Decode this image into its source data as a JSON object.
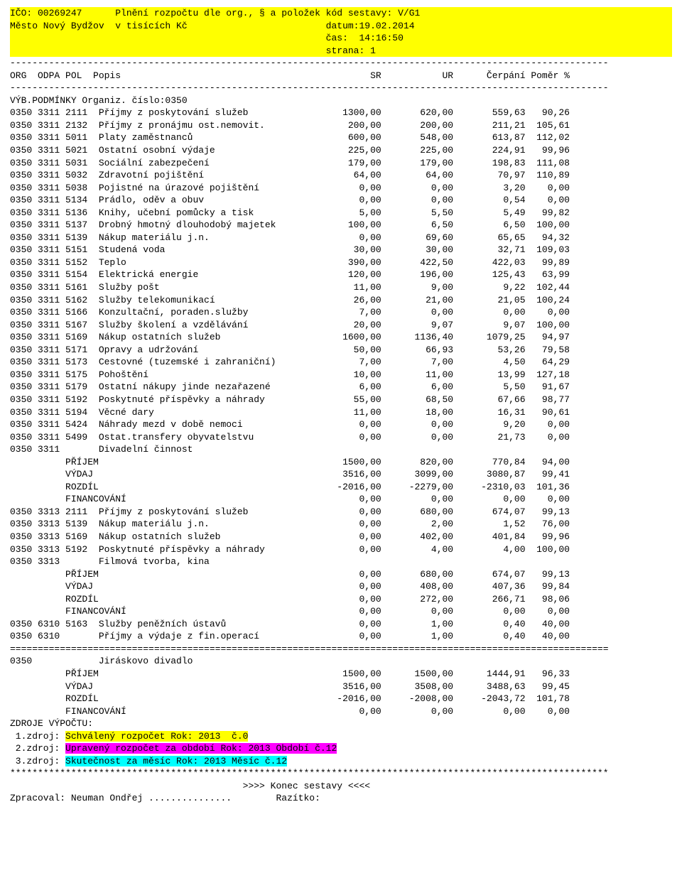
{
  "header": {
    "ico_label": "IČO: 00269247",
    "title": "Plnění rozpočtu dle org., § a položek",
    "kod": "kód sestavy: V/G1",
    "mesto": "Město Nový Bydžov  v tisících Kč",
    "datum": "datum:19.02.2014",
    "cas": "čas:  14:16:50",
    "strana": "strana: 1"
  },
  "colhdr": {
    "left": "ORG  ODPA POL  Popis",
    "sr": "SR",
    "ur": "UR",
    "cerp": "Čerpání",
    "pomer": "Poměr %"
  },
  "vyb": "VÝB.PODMÍNKY Organiz. číslo:0350",
  "rows": [
    {
      "key": "0350 3311 2111  Příjmy z poskytování služeb",
      "sr": "1300,00",
      "ur": "620,00",
      "c": "559,63",
      "p": "90,26"
    },
    {
      "key": "0350 3311 2132  Příjmy z pronájmu ost.nemovit.",
      "sr": "200,00",
      "ur": "200,00",
      "c": "211,21",
      "p": "105,61"
    },
    {
      "key": "0350 3311 5011  Platy zaměstnanců",
      "sr": "600,00",
      "ur": "548,00",
      "c": "613,87",
      "p": "112,02"
    },
    {
      "key": "0350 3311 5021  Ostatní osobní výdaje",
      "sr": "225,00",
      "ur": "225,00",
      "c": "224,91",
      "p": "99,96"
    },
    {
      "key": "0350 3311 5031  Sociální zabezpečení",
      "sr": "179,00",
      "ur": "179,00",
      "c": "198,83",
      "p": "111,08"
    },
    {
      "key": "0350 3311 5032  Zdravotní pojištění",
      "sr": "64,00",
      "ur": "64,00",
      "c": "70,97",
      "p": "110,89"
    },
    {
      "key": "0350 3311 5038  Pojistné na úrazové pojištění",
      "sr": "0,00",
      "ur": "0,00",
      "c": "3,20",
      "p": "0,00"
    },
    {
      "key": "0350 3311 5134  Prádlo, oděv a obuv",
      "sr": "0,00",
      "ur": "0,00",
      "c": "0,54",
      "p": "0,00"
    },
    {
      "key": "0350 3311 5136  Knihy, učební pomůcky a tisk",
      "sr": "5,00",
      "ur": "5,50",
      "c": "5,49",
      "p": "99,82"
    },
    {
      "key": "0350 3311 5137  Drobný hmotný dlouhodobý majetek",
      "sr": "100,00",
      "ur": "6,50",
      "c": "6,50",
      "p": "100,00"
    },
    {
      "key": "0350 3311 5139  Nákup materiálu j.n.",
      "sr": "0,00",
      "ur": "69,60",
      "c": "65,65",
      "p": "94,32"
    },
    {
      "key": "0350 3311 5151  Studená voda",
      "sr": "30,00",
      "ur": "30,00",
      "c": "32,71",
      "p": "109,03"
    },
    {
      "key": "0350 3311 5152  Teplo",
      "sr": "390,00",
      "ur": "422,50",
      "c": "422,03",
      "p": "99,89"
    },
    {
      "key": "0350 3311 5154  Elektrická energie",
      "sr": "120,00",
      "ur": "196,00",
      "c": "125,43",
      "p": "63,99"
    },
    {
      "key": "0350 3311 5161  Služby pošt",
      "sr": "11,00",
      "ur": "9,00",
      "c": "9,22",
      "p": "102,44"
    },
    {
      "key": "0350 3311 5162  Služby telekomunikací",
      "sr": "26,00",
      "ur": "21,00",
      "c": "21,05",
      "p": "100,24"
    },
    {
      "key": "0350 3311 5166  Konzultační, poraden.služby",
      "sr": "7,00",
      "ur": "0,00",
      "c": "0,00",
      "p": "0,00"
    },
    {
      "key": "0350 3311 5167  Služby školení a vzdělávání",
      "sr": "20,00",
      "ur": "9,07",
      "c": "9,07",
      "p": "100,00"
    },
    {
      "key": "0350 3311 5169  Nákup ostatních služeb",
      "sr": "1600,00",
      "ur": "1136,40",
      "c": "1079,25",
      "p": "94,97"
    },
    {
      "key": "0350 3311 5171  Opravy a udržování",
      "sr": "50,00",
      "ur": "66,93",
      "c": "53,26",
      "p": "79,58"
    },
    {
      "key": "0350 3311 5173  Cestovné (tuzemské i zahraniční)",
      "sr": "7,00",
      "ur": "7,00",
      "c": "4,50",
      "p": "64,29"
    },
    {
      "key": "0350 3311 5175  Pohoštění",
      "sr": "10,00",
      "ur": "11,00",
      "c": "13,99",
      "p": "127,18"
    },
    {
      "key": "0350 3311 5179  Ostatní nákupy jinde nezařazené",
      "sr": "6,00",
      "ur": "6,00",
      "c": "5,50",
      "p": "91,67"
    },
    {
      "key": "0350 3311 5192  Poskytnuté příspěvky a náhrady",
      "sr": "55,00",
      "ur": "68,50",
      "c": "67,66",
      "p": "98,77"
    },
    {
      "key": "0350 3311 5194  Věcné dary",
      "sr": "11,00",
      "ur": "18,00",
      "c": "16,31",
      "p": "90,61"
    },
    {
      "key": "0350 3311 5424  Náhrady mezd v době nemoci",
      "sr": "0,00",
      "ur": "0,00",
      "c": "9,20",
      "p": "0,00"
    },
    {
      "key": "0350 3311 5499  Ostat.transfery obyvatelstvu",
      "sr": "0,00",
      "ur": "0,00",
      "c": "21,73",
      "p": "0,00"
    },
    {
      "key": "0350 3311       Divadelní činnost"
    },
    {
      "key": "          PŘÍJEM",
      "sr": "1500,00",
      "ur": "820,00",
      "c": "770,84",
      "p": "94,00"
    },
    {
      "key": "          VÝDAJ",
      "sr": "3516,00",
      "ur": "3099,00",
      "c": "3080,87",
      "p": "99,41"
    },
    {
      "key": "          ROZDÍL",
      "sr": "-2016,00",
      "ur": "-2279,00",
      "c": "-2310,03",
      "p": "101,36"
    },
    {
      "key": "          FINANCOVÁNÍ",
      "sr": "0,00",
      "ur": "0,00",
      "c": "0,00",
      "p": "0,00"
    },
    {
      "key": "0350 3313 2111  Příjmy z poskytování služeb",
      "sr": "0,00",
      "ur": "680,00",
      "c": "674,07",
      "p": "99,13"
    },
    {
      "key": "0350 3313 5139  Nákup materiálu j.n.",
      "sr": "0,00",
      "ur": "2,00",
      "c": "1,52",
      "p": "76,00"
    },
    {
      "key": "0350 3313 5169  Nákup ostatních služeb",
      "sr": "0,00",
      "ur": "402,00",
      "c": "401,84",
      "p": "99,96"
    },
    {
      "key": "0350 3313 5192  Poskytnuté příspěvky a náhrady",
      "sr": "0,00",
      "ur": "4,00",
      "c": "4,00",
      "p": "100,00"
    },
    {
      "key": "0350 3313       Filmová tvorba, kina"
    },
    {
      "key": "          PŘÍJEM",
      "sr": "0,00",
      "ur": "680,00",
      "c": "674,07",
      "p": "99,13"
    },
    {
      "key": "          VÝDAJ",
      "sr": "0,00",
      "ur": "408,00",
      "c": "407,36",
      "p": "99,84"
    },
    {
      "key": "          ROZDÍL",
      "sr": "0,00",
      "ur": "272,00",
      "c": "266,71",
      "p": "98,06"
    },
    {
      "key": "          FINANCOVÁNÍ",
      "sr": "0,00",
      "ur": "0,00",
      "c": "0,00",
      "p": "0,00"
    },
    {
      "key": "0350 6310 5163  Služby peněžních ústavů",
      "sr": "0,00",
      "ur": "1,00",
      "c": "0,40",
      "p": "40,00"
    },
    {
      "key": "0350 6310       Příjmy a výdaje z fin.operací",
      "sr": "0,00",
      "ur": "1,00",
      "c": "0,40",
      "p": "40,00"
    }
  ],
  "summary": {
    "title": "0350            Jiráskovo divadlo",
    "rows": [
      {
        "key": "          PŘÍJEM",
        "sr": "1500,00",
        "ur": "1500,00",
        "c": "1444,91",
        "p": "96,33"
      },
      {
        "key": "          VÝDAJ",
        "sr": "3516,00",
        "ur": "3508,00",
        "c": "3488,63",
        "p": "99,45"
      },
      {
        "key": "          ROZDÍL",
        "sr": "-2016,00",
        "ur": "-2008,00",
        "c": "-2043,72",
        "p": "101,78"
      },
      {
        "key": "          FINANCOVÁNÍ",
        "sr": "0,00",
        "ur": "0,00",
        "c": "0,00",
        "p": "0,00"
      }
    ]
  },
  "zdroje": {
    "title": "ZDROJE VÝPOČTU:",
    "r1_p": " 1.zdroj: ",
    "r1_h": "Schválený rozpočet Rok: 2013  č.0",
    "r2_p": " 2.zdroj: ",
    "r2_h": "Upravený rozpočet za období Rok: 2013 Období č.12",
    "r3_p": " 3.zdroj: ",
    "r3_h": "Skutečnost za měsíc Rok: 2013 Měsíc č.12"
  },
  "end_marker": ">>>> Konec sestavy <<<<",
  "footer": {
    "zprac": "Zpracoval: Neuman Ondřej ...............",
    "razitko": "Razítko:"
  },
  "layout": {
    "total_width": 108,
    "key_width": 54,
    "num_width": 13,
    "pct_width": 8,
    "dash_char": "-",
    "eq_char": "=",
    "star_char": "*",
    "header_title_pad": 19,
    "header_kod_pad": 57
  }
}
